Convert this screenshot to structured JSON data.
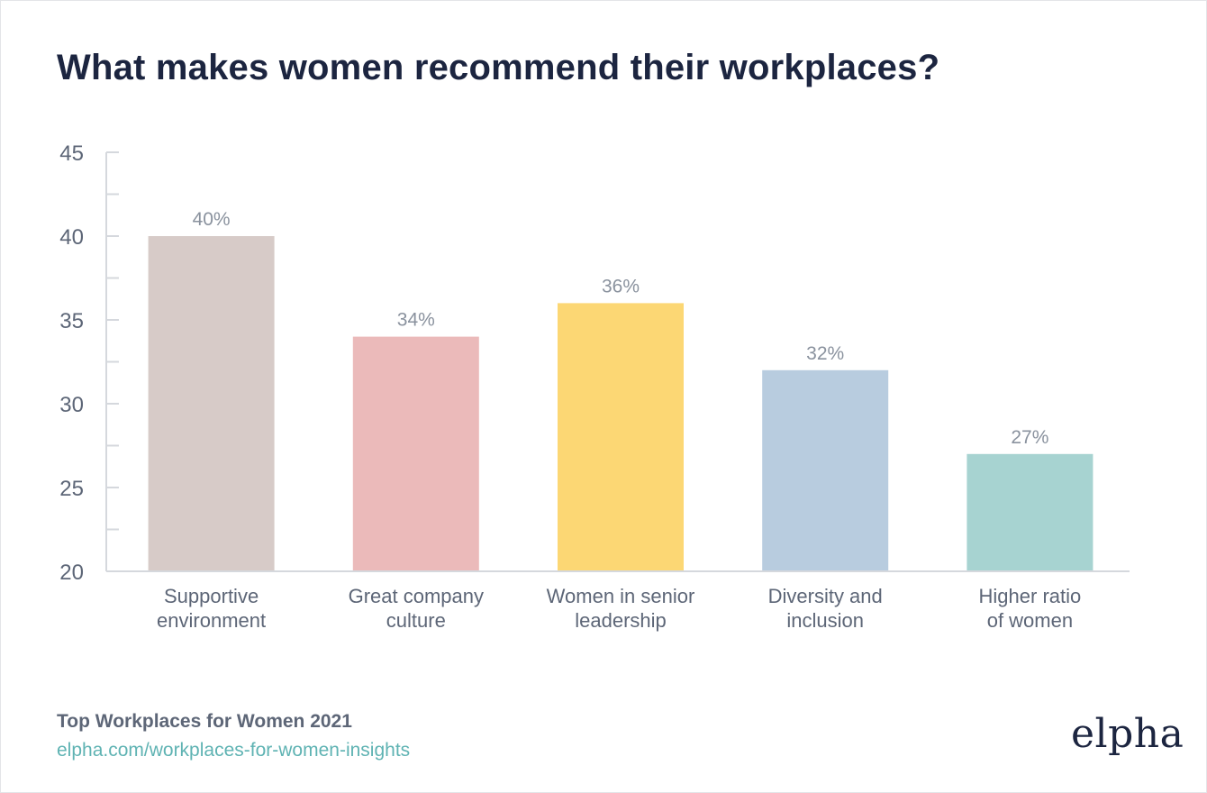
{
  "chart_data": {
    "type": "bar",
    "title": "What makes women recommend their workplaces?",
    "categories": [
      [
        "Supportive",
        "environment"
      ],
      [
        "Great company",
        "culture"
      ],
      [
        "Women in senior",
        "leadership"
      ],
      [
        "Diversity and",
        "inclusion"
      ],
      [
        "Higher ratio",
        "of women"
      ]
    ],
    "values": [
      40,
      34,
      36,
      32,
      27
    ],
    "data_labels": [
      "40%",
      "34%",
      "36%",
      "32%",
      "27%"
    ],
    "colors": [
      "#d7cbc8",
      "#ebbaba",
      "#fcd774",
      "#b8ccdf",
      "#a7d3d1"
    ],
    "ylim": [
      20,
      45
    ],
    "yticks": [
      "20",
      "25",
      "30",
      "35",
      "40",
      "45"
    ],
    "xlabel": "",
    "ylabel": ""
  },
  "footer": {
    "source": "Top Workplaces for Women 2021",
    "link": "elpha.com/workplaces-for-women-insights"
  },
  "brand": {
    "logo_text": "elpha"
  },
  "colors": {
    "title": "#1c2540",
    "axis": "#d5d8dd",
    "tick_text": "#5d6677",
    "data_label": "#8a929e",
    "link": "#5fb3b3"
  }
}
